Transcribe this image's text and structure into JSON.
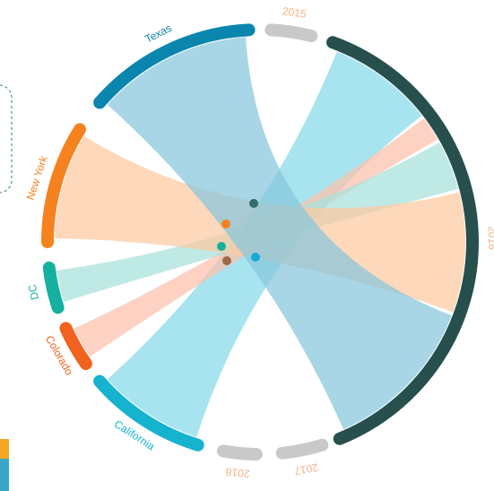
{
  "nodes": [
    {
      "label": "Texas",
      "color": "#0a86ae"
    },
    {
      "label": "New York",
      "color": "#f5821f"
    },
    {
      "label": "DC",
      "color": "#15b0a0"
    },
    {
      "label": "Colorado",
      "color": "#f0621e"
    },
    {
      "label": "California",
      "color": "#16b3cf"
    },
    {
      "label": "2015",
      "color": "#c9c9c9"
    },
    {
      "label": "2016",
      "color": "#264f4e"
    },
    {
      "label": "2017",
      "color": "#c9c9c9"
    },
    {
      "label": "2018",
      "color": "#c9c9c9"
    }
  ]
}
